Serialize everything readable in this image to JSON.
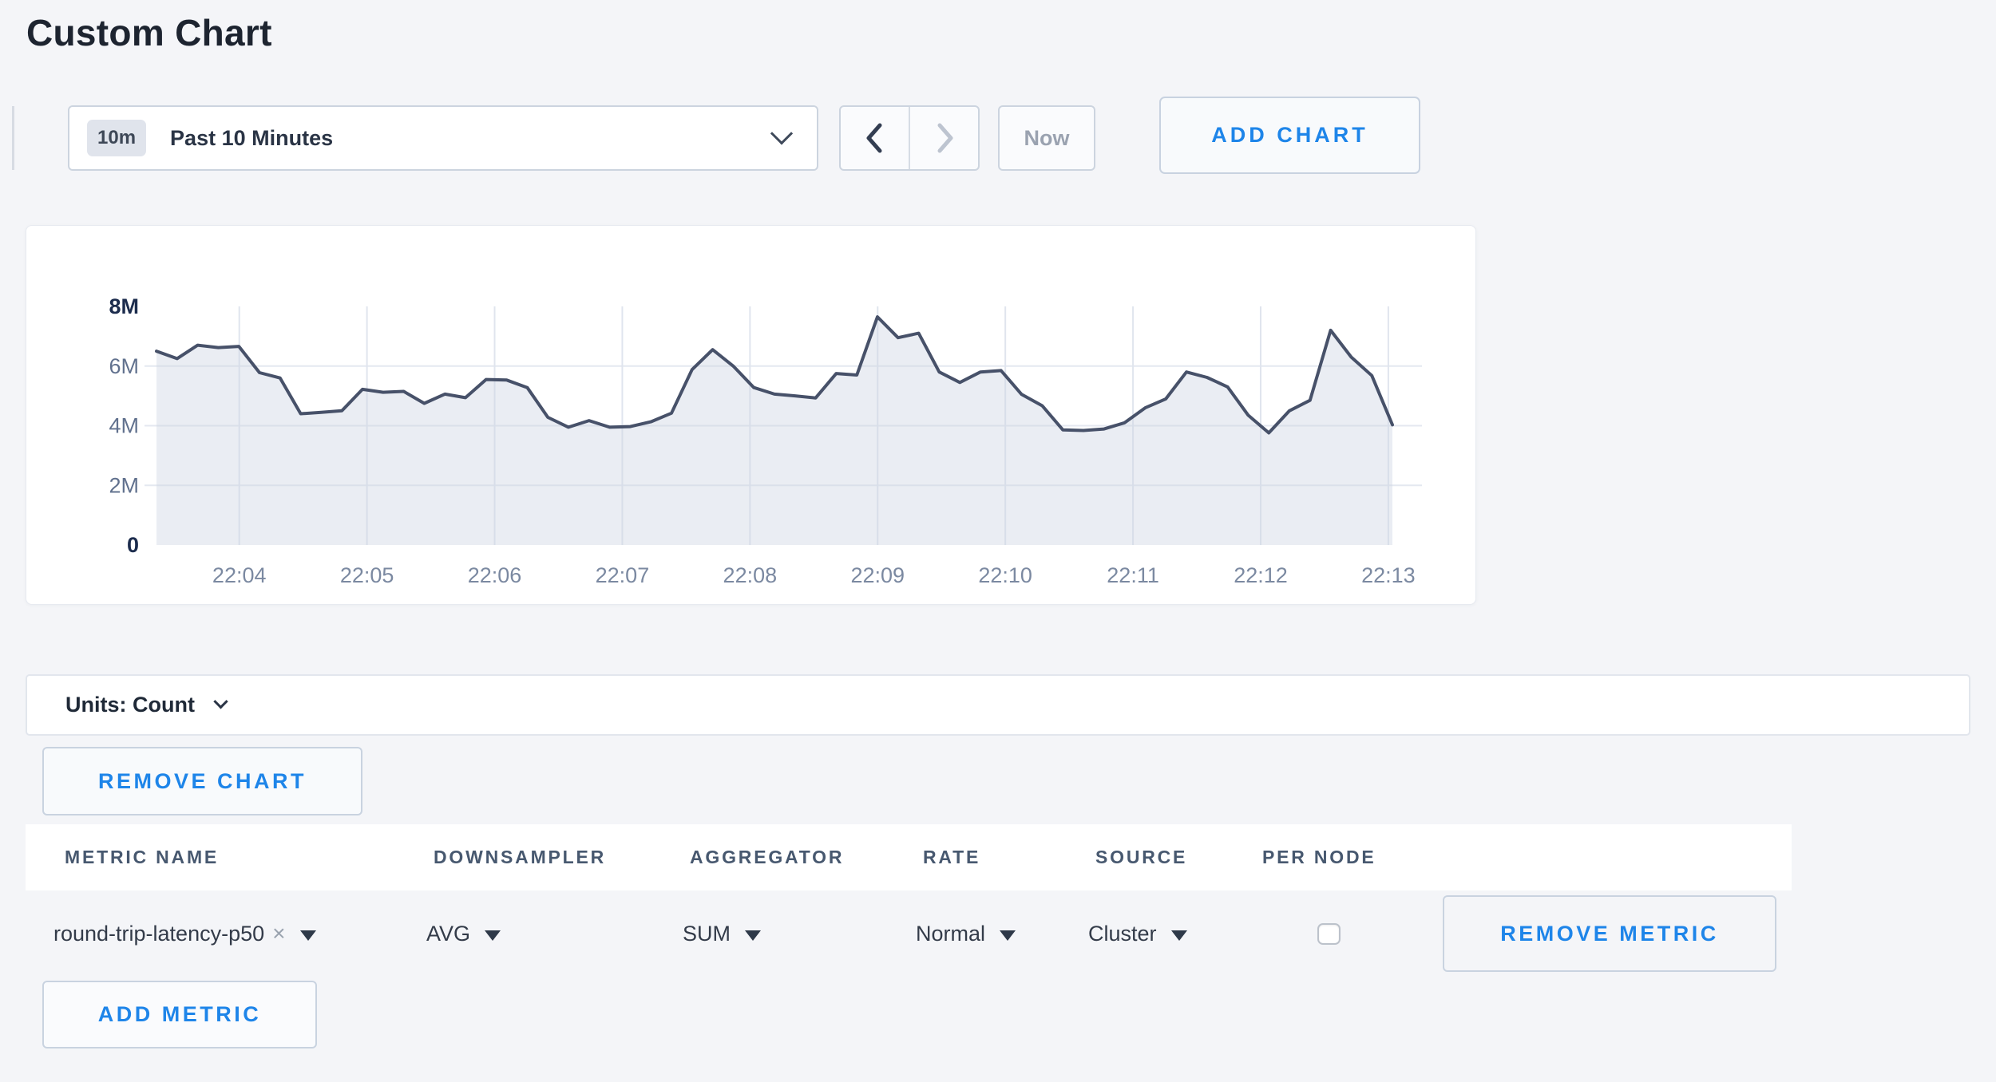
{
  "page": {
    "title": "Custom Chart"
  },
  "accent_color": "#1e85e9",
  "toolbar": {
    "time_range_badge": "10m",
    "time_range_label": "Past 10 Minutes",
    "now_label": "Now",
    "add_chart_label": "ADD CHART"
  },
  "icons": {
    "time_range_chevron": "chevron-down",
    "prev": "chevron-left",
    "next": "chevron-right (disabled)",
    "units_chevron": "chevron-down",
    "dropdown_caret": "triangle-down",
    "remove_tag": "close-x"
  },
  "chart_data": {
    "type": "area",
    "title": "",
    "xlabel": "",
    "ylabel": "Count",
    "grid": true,
    "legend": "none",
    "x_tick_labels": [
      "22:04",
      "22:05",
      "22:06",
      "22:07",
      "22:08",
      "22:09",
      "22:10",
      "22:11",
      "22:12",
      "22:13"
    ],
    "y_tick_labels": [
      "0",
      "2M",
      "4M",
      "6M",
      "8M"
    ],
    "y_tick_values_millions": [
      0,
      2,
      4,
      6,
      8
    ],
    "ylim_millions": [
      0,
      8
    ],
    "layout": {
      "first_tick_frac": 0.067,
      "tick_step_frac": 0.1033
    },
    "series": [
      {
        "name": "round-trip-latency-p50",
        "downsampler": "AVG",
        "aggregator": "SUM",
        "start_time": "22:03:20",
        "sample_interval_seconds": 10,
        "values_millions": [
          6.5,
          6.25,
          6.7,
          6.62,
          6.66,
          5.78,
          5.6,
          4.4,
          4.45,
          4.5,
          5.22,
          5.12,
          5.15,
          4.75,
          5.06,
          4.94,
          5.55,
          5.53,
          5.28,
          4.28,
          3.95,
          4.17,
          3.95,
          3.97,
          4.13,
          4.42,
          5.88,
          6.55,
          6.0,
          5.28,
          5.06,
          5.0,
          4.93,
          5.75,
          5.7,
          7.65,
          6.95,
          7.1,
          5.8,
          5.45,
          5.8,
          5.85,
          5.05,
          4.67,
          3.86,
          3.84,
          3.89,
          4.1,
          4.6,
          4.9,
          5.8,
          5.62,
          5.3,
          4.35,
          3.76,
          4.5,
          4.85,
          7.2,
          6.3,
          5.68,
          4.03
        ]
      }
    ],
    "colors": {
      "line": "#475169",
      "fill": "rgba(205,212,226,0.42)",
      "grid_v": "#e0e5ee",
      "grid_h": "#e4e8f0",
      "tick_label": "#7b89a1",
      "y_minor_label": "#61718e",
      "y_bold_label": "#1c2c4d"
    }
  },
  "units_bar": {
    "label": "Units: Count"
  },
  "chart_actions": {
    "remove_chart_label": "REMOVE CHART"
  },
  "metrics_table": {
    "columns": [
      "METRIC NAME",
      "DOWNSAMPLER",
      "AGGREGATOR",
      "RATE",
      "SOURCE",
      "PER NODE"
    ],
    "rows": [
      {
        "metric_name": "round-trip-latency-p50",
        "remove_tag": "×",
        "downsampler": "AVG",
        "aggregator": "SUM",
        "rate": "Normal",
        "source": "Cluster",
        "per_node_checked": false,
        "remove_metric_label": "REMOVE METRIC"
      }
    ],
    "add_metric_label": "ADD METRIC"
  }
}
